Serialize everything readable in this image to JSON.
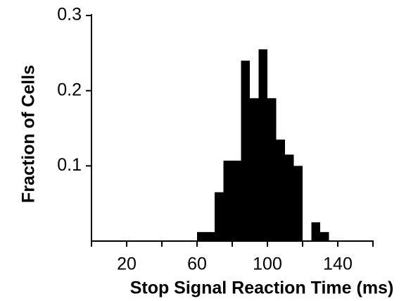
{
  "chart_data": {
    "type": "histogram",
    "xlabel": "Stop Signal Reaction Time (ms)",
    "ylabel": "Fraction of Cells",
    "bins": [
      60,
      65,
      70,
      75,
      80,
      85,
      90,
      95,
      100,
      105,
      110,
      115,
      120,
      125,
      130,
      135
    ],
    "values": [
      0.012,
      0.012,
      0.065,
      0.107,
      0.107,
      0.24,
      0.19,
      0.255,
      0.19,
      0.135,
      0.115,
      0.1,
      0,
      0.025,
      0.012
    ],
    "color": "#000000",
    "xlim": [
      0,
      160
    ],
    "xticks": [
      20,
      60,
      100,
      140
    ],
    "xminorticks": [
      0,
      40,
      80,
      120,
      160
    ],
    "ylim": [
      0,
      0.3
    ],
    "yticks": [
      0.1,
      0.2,
      0.3
    ]
  }
}
